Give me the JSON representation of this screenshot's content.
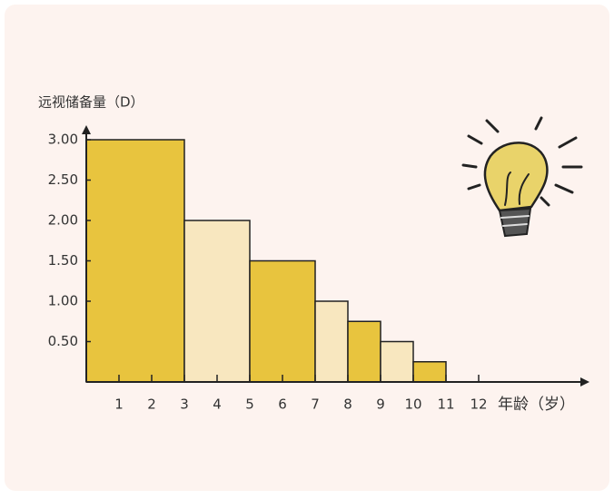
{
  "chart_data": {
    "type": "histogram",
    "ylabel": "远视储备量（D）",
    "xlabel": "年龄（岁）",
    "bins": [
      0,
      3,
      5,
      7,
      8,
      9,
      10,
      11
    ],
    "values": [
      3,
      2,
      1.5,
      1,
      0.75,
      0.5,
      0.25
    ],
    "colors": [
      "#e8c43e",
      "#f8e7bf",
      "#e8c43e",
      "#f8e7bf",
      "#e8c43e",
      "#f8e7bf",
      "#e8c43e"
    ],
    "xlim": [
      0,
      15
    ],
    "xticks": [
      1,
      2,
      3,
      4,
      5,
      6,
      7,
      8,
      9,
      10,
      11,
      12
    ],
    "ylim": [
      0,
      3
    ],
    "yticks": [
      {
        "value": 0.5,
        "label": "0.50"
      },
      {
        "value": 1,
        "label": "1.00"
      },
      {
        "value": 1.5,
        "label": "1.50"
      },
      {
        "value": 2,
        "label": "2.00"
      },
      {
        "value": 2.5,
        "label": "2.50"
      },
      {
        "value": 3,
        "label": "3.00"
      }
    ]
  }
}
